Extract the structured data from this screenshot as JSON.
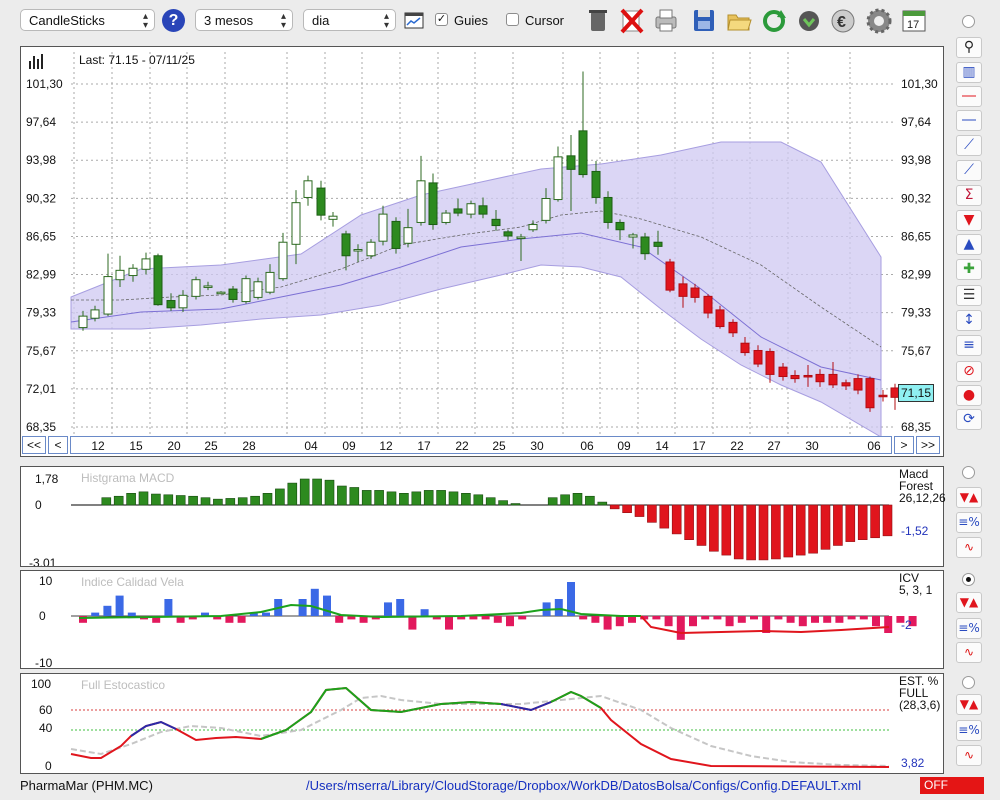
{
  "toolbar": {
    "chart_type": "CandleSticks",
    "period": "3 mesos",
    "interval": "dia",
    "guides_label": "Guies",
    "guides_checked": "✓",
    "cursor_label": "Cursor",
    "icons": [
      "help-icon",
      "chart-window-icon",
      "trash-icon",
      "delete-icon",
      "printer-icon",
      "save-icon",
      "open-folder-icon",
      "refresh-icon",
      "download-icon",
      "euro-icon",
      "settings-icon",
      "calendar-icon"
    ],
    "calendar_day": "17"
  },
  "main_chart": {
    "last_label": "Last: 71.15 - 07/11/25",
    "last_value": "71,15",
    "y_ticks": [
      "101,30",
      "97,64",
      "93,98",
      "90,32",
      "86,65",
      "82,99",
      "79,33",
      "75,67",
      "72,01",
      "68,35"
    ],
    "x_ticks": [
      "12",
      "15",
      "20",
      "25",
      "28",
      "04",
      "09",
      "12",
      "17",
      "22",
      "25",
      "30",
      "06",
      "09",
      "14",
      "17",
      "22",
      "27",
      "30",
      "06"
    ],
    "nav": {
      "first": "<<",
      "prev": "<",
      "next": ">",
      "last": ">>"
    }
  },
  "macd": {
    "title": "Histgrama MACD",
    "label1": "Macd",
    "label2": "Forest",
    "params": "26,12,26",
    "value": "-1,52",
    "y_ticks": [
      "1,78",
      "0",
      "-3,01"
    ]
  },
  "icv": {
    "title": "Indice Calidad Vela",
    "label": "ICV",
    "params": "5, 3, 1",
    "value": "-2",
    "y_ticks": [
      "10",
      "0",
      "-10"
    ]
  },
  "stoch": {
    "title": "Full Estocastico",
    "label1": "EST. %",
    "label2": "FULL",
    "params": "(28,3,6)",
    "value": "3,82",
    "y_ticks": [
      "100",
      "60",
      "40",
      "0"
    ]
  },
  "status": {
    "ticker": "PharmaMar (PHM.MC)",
    "path": "/Users/mserra/Library/CloudStorage/Dropbox/WorkDB/DatosBolsa/Configs/Config.DEFAULT.xml",
    "state": "OFF"
  },
  "sidebar": {
    "tools": [
      "zoom-icon",
      "bars-chart-icon",
      "horizontal-red-line-icon",
      "horizontal-blue-line-icon",
      "fibonacci-icon",
      "trendline-icon",
      "sigma-trendline-icon",
      "sell-arrow-icon",
      "buy-arrow-icon",
      "buy-sell-icon",
      "levels-icon",
      "percent-range-icon",
      "percent-lines-icon",
      "stop-icon",
      "record-icon",
      "sync-icon"
    ],
    "indicator_tools": [
      "buy-sell-arrows-icon",
      "percent-lines-icon",
      "curves-icon"
    ]
  },
  "colors": {
    "up": "#2d8a1f",
    "down": "#e0151d",
    "band": "#cfc8f2",
    "accent": "#2233bb"
  }
}
